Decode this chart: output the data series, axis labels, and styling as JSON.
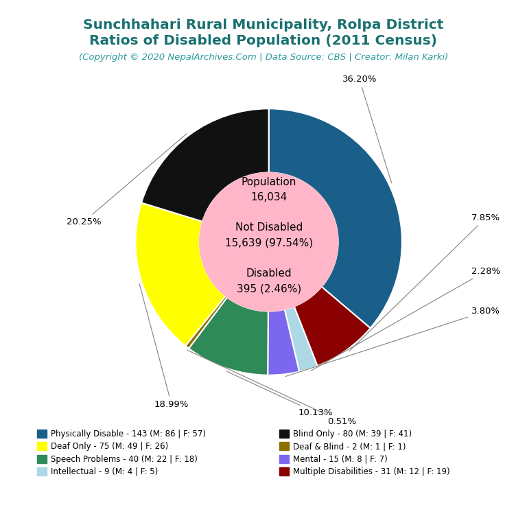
{
  "title_line1": "Sunchhahari Rural Municipality, Rolpa District",
  "title_line2": "Ratios of Disabled Population (2011 Census)",
  "subtitle": "(Copyright © 2020 NepalArchives.Com | Data Source: CBS | Creator: Milan Karki)",
  "title_color": "#1a7070",
  "subtitle_color": "#2a9a9a",
  "center_bg": "#ffb6c8",
  "categories_col1": [
    "Physically Disable - 143 (M: 86 | F: 57)",
    "Deaf Only - 75 (M: 49 | F: 26)",
    "Speech Problems - 40 (M: 22 | F: 18)",
    "Intellectual - 9 (M: 4 | F: 5)"
  ],
  "categories_col2": [
    "Blind Only - 80 (M: 39 | F: 41)",
    "Deaf & Blind - 2 (M: 1 | F: 1)",
    "Mental - 15 (M: 8 | F: 7)",
    "Multiple Disabilities - 31 (M: 12 | F: 19)"
  ],
  "colors_col1": [
    "#1a5f8a",
    "#ffff00",
    "#2e8b57",
    "#add8e6"
  ],
  "colors_col2": [
    "#111111",
    "#8b7000",
    "#7b68ee",
    "#8b0000"
  ],
  "slice_order": [
    "Physically Disable",
    "Multiple Disabilities",
    "Intellectual",
    "Mental",
    "Speech Problems",
    "Deaf & Blind",
    "Deaf Only",
    "Blind Only"
  ],
  "slice_values": [
    143,
    31,
    9,
    15,
    40,
    2,
    75,
    80
  ],
  "slice_colors": [
    "#1a5f8a",
    "#8b0000",
    "#add8e6",
    "#7b68ee",
    "#2e8b57",
    "#8b7000",
    "#ffff00",
    "#111111"
  ],
  "slice_pcts": [
    "36.20%",
    "7.85%",
    "2.28%",
    "3.80%",
    "10.13%",
    "0.51%",
    "18.99%",
    "20.25%"
  ],
  "bg_color": "#ffffff"
}
